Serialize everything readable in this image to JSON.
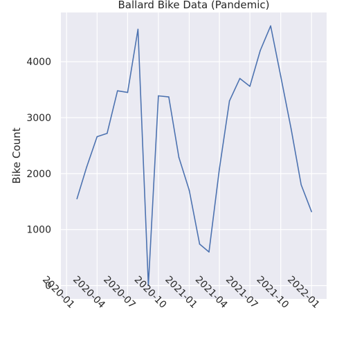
{
  "chart_data": {
    "type": "line",
    "title": "Ballard Bike Data (Pandemic)",
    "xlabel": "",
    "ylabel": "Bike Count",
    "x": [
      "2020-02",
      "2020-03",
      "2020-04",
      "2020-05",
      "2020-06",
      "2020-07",
      "2020-08",
      "2020-09",
      "2020-10",
      "2020-11",
      "2020-12",
      "2021-01",
      "2021-02",
      "2021-03",
      "2021-04",
      "2021-05",
      "2021-06",
      "2021-07",
      "2021-08",
      "2021-09",
      "2021-10",
      "2021-11",
      "2021-12",
      "2022-01"
    ],
    "series": [
      {
        "values": [
          1550,
          2120,
          2660,
          2720,
          3480,
          3450,
          4580,
          0,
          3390,
          3370,
          2290,
          1700,
          740,
          600,
          2080,
          3300,
          3700,
          3560,
          4200,
          4640,
          3740,
          2800,
          1800,
          1320
        ]
      }
    ],
    "xticks": [
      "2020-01",
      "2020-04",
      "2020-07",
      "2020-10",
      "2021-01",
      "2021-04",
      "2021-07",
      "2021-10",
      "2022-01"
    ],
    "yticks": [
      0,
      1000,
      2000,
      3000,
      4000
    ],
    "xlim": [
      "2019-12-15",
      "2022-02-15"
    ],
    "ylim": [
      -240,
      4880
    ],
    "grid": true,
    "colors": {
      "background": "#eaeaf2",
      "grid": "#ffffff",
      "line": "#4c72b0"
    }
  }
}
